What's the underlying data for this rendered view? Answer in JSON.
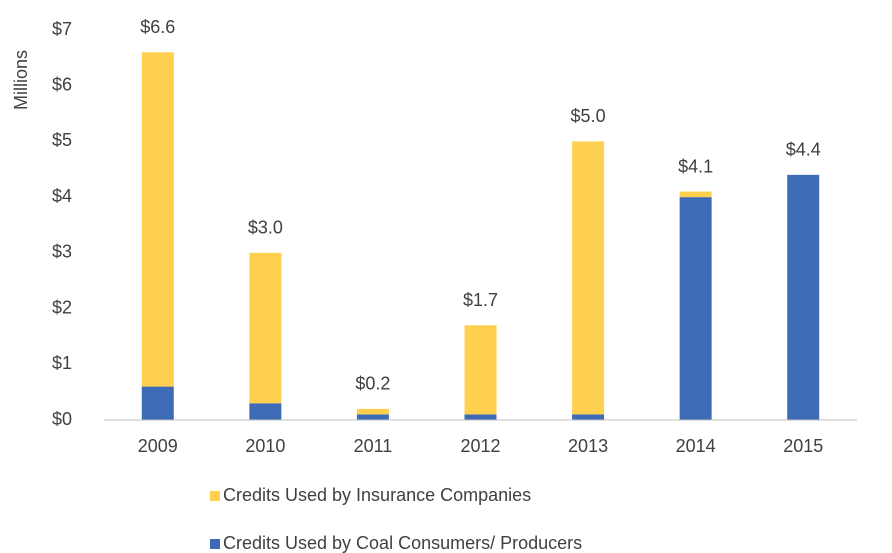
{
  "chart_data": {
    "type": "stacked_bar",
    "y_label": "Millions",
    "categories": [
      "2009",
      "2010",
      "2011",
      "2012",
      "2013",
      "2014",
      "2015"
    ],
    "series": [
      {
        "name": "Credits Used by Insurance Companies",
        "color": "#ffd04f",
        "values": [
          6.0,
          2.7,
          0.1,
          1.6,
          4.9,
          0.1,
          0
        ]
      },
      {
        "name": "Credits Used by Coal Consumers/ Producers",
        "color": "#3e6bb5",
        "values": [
          0.6,
          0.3,
          0.1,
          0.1,
          0.1,
          4.0,
          4.4
        ]
      }
    ],
    "totals": [
      6.6,
      3.0,
      0.2,
      1.7,
      5.0,
      4.1,
      4.4
    ],
    "total_labels": [
      "$6.6",
      "$3.0",
      "$0.2",
      "$1.7",
      "$5.0",
      "$4.1",
      "$4.4"
    ],
    "ylim": [
      0,
      7
    ],
    "yticks": [
      {
        "value": 0,
        "label": "$0"
      },
      {
        "value": 1,
        "label": "$1"
      },
      {
        "value": 2,
        "label": "$2"
      },
      {
        "value": 3,
        "label": "$3"
      },
      {
        "value": 4,
        "label": "$4"
      },
      {
        "value": 5,
        "label": "$5"
      },
      {
        "value": 6,
        "label": "$6"
      },
      {
        "value": 7,
        "label": "$7"
      }
    ],
    "grid": false,
    "legend": "bottom"
  }
}
